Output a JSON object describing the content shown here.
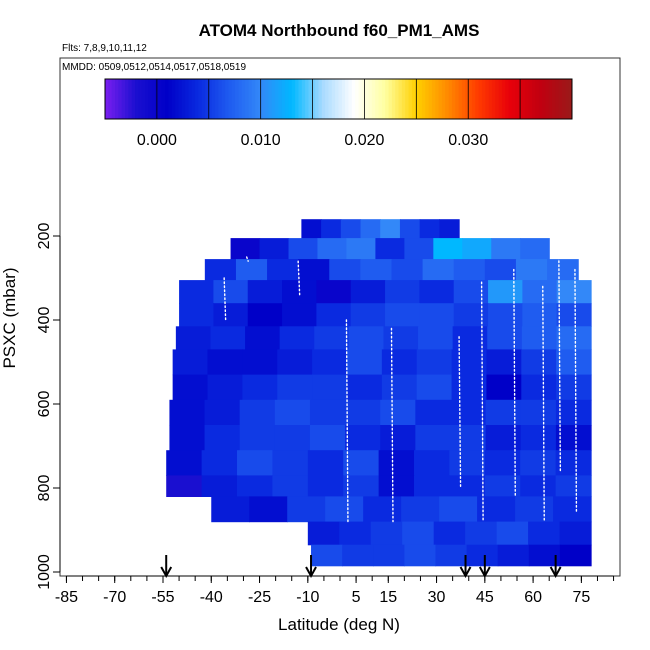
{
  "chart_data": {
    "type": "heatmap",
    "title": "ATOM4 Northbound f60_PM1_AMS",
    "flights_label": "Flts: 7,8,9,10,11,12",
    "dates_label": "MMDD: 0509,0512,0514,0517,0518,0519",
    "xlabel": "Latitude (deg N)",
    "ylabel": "PSXC (mbar)",
    "xlim": [
      -87,
      87
    ],
    "ylim": [
      1015,
      0
    ],
    "x_ticks": [
      -85,
      -70,
      -55,
      -40,
      -25,
      -10,
      5,
      15,
      30,
      45,
      60,
      75
    ],
    "x_tick_labels": [
      "-85",
      "-70",
      "-55",
      "-40",
      "-25",
      "-10",
      "5",
      "15",
      "30",
      "45",
      "60",
      "75"
    ],
    "y_ticks": [
      200,
      400,
      600,
      800,
      1000
    ],
    "y_tick_labels": [
      "200",
      "400",
      "600",
      "800",
      "1000"
    ],
    "colorbar": {
      "range": [
        -0.005,
        0.04
      ],
      "tick_values": [
        0.0,
        0.01,
        0.02,
        0.03
      ],
      "tick_labels": [
        "0.000",
        "0.010",
        "0.020",
        "0.030"
      ],
      "colors": [
        "#7a1ff0",
        "#1a0fd0",
        "#0000c8",
        "#0a2ae0",
        "#1f5cf0",
        "#3388f8",
        "#00b8ff",
        "#a8daff",
        "#ffffff",
        "#ffffa0",
        "#ffd000",
        "#ff8a00",
        "#ff3a00",
        "#e8000a",
        "#c00010",
        "#9a1a1a"
      ]
    },
    "flight_markers_lat": [
      -54,
      -9,
      39,
      45,
      67
    ],
    "bands": [
      {
        "p": [
          160,
          205
        ],
        "lat": [
          -12,
          37
        ],
        "vals": [
          0.002,
          0.004,
          0.006,
          0.008,
          0.01,
          0.006,
          0.004,
          0.003
        ]
      },
      {
        "p": [
          205,
          255
        ],
        "lat": [
          -34,
          65
        ],
        "vals": [
          0.0,
          0.003,
          0.006,
          0.008,
          0.009,
          0.004,
          0.006,
          0.013,
          0.012,
          0.009,
          0.008
        ]
      },
      {
        "p": [
          255,
          305
        ],
        "lat": [
          -42,
          74
        ],
        "vals": [
          0.004,
          0.007,
          0.004,
          0.002,
          0.006,
          0.007,
          0.006,
          0.008,
          0.007,
          0.006,
          0.009,
          0.008
        ]
      },
      {
        "p": [
          305,
          360
        ],
        "lat": [
          -50,
          78
        ],
        "vals": [
          0.004,
          0.006,
          0.003,
          0.002,
          0.0,
          0.003,
          0.005,
          0.004,
          0.006,
          0.011,
          0.008,
          0.01
        ]
      },
      {
        "p": [
          360,
          415
        ],
        "lat": [
          -50,
          78
        ],
        "vals": [
          0.004,
          0.003,
          0.001,
          0.002,
          0.004,
          0.005,
          0.006,
          0.006,
          0.005,
          0.006,
          0.007,
          0.006
        ]
      },
      {
        "p": [
          415,
          470
        ],
        "lat": [
          -51,
          78
        ],
        "vals": [
          0.003,
          0.004,
          0.002,
          0.004,
          0.005,
          0.006,
          0.005,
          0.006,
          0.004,
          0.006,
          0.007,
          0.008
        ]
      },
      {
        "p": [
          470,
          530
        ],
        "lat": [
          -52,
          78
        ],
        "vals": [
          0.003,
          0.002,
          0.002,
          0.003,
          0.004,
          0.006,
          0.004,
          0.005,
          0.004,
          0.003,
          0.005,
          0.007
        ]
      },
      {
        "p": [
          530,
          590
        ],
        "lat": [
          -52,
          78
        ],
        "vals": [
          0.002,
          0.003,
          0.004,
          0.005,
          0.005,
          0.004,
          0.005,
          0.006,
          0.004,
          0.001,
          0.004,
          0.005
        ]
      },
      {
        "p": [
          590,
          650
        ],
        "lat": [
          -53,
          78
        ],
        "vals": [
          0.002,
          0.003,
          0.005,
          0.006,
          0.005,
          0.005,
          0.006,
          0.004,
          0.004,
          0.005,
          0.005,
          0.004
        ]
      },
      {
        "p": [
          650,
          710
        ],
        "lat": [
          -53,
          78
        ],
        "vals": [
          0.002,
          0.004,
          0.005,
          0.005,
          0.006,
          0.004,
          0.003,
          0.005,
          0.005,
          0.003,
          0.004,
          0.002
        ]
      },
      {
        "p": [
          710,
          770
        ],
        "lat": [
          -54,
          78
        ],
        "vals": [
          0.002,
          0.004,
          0.006,
          0.005,
          0.004,
          0.006,
          0.002,
          0.004,
          0.005,
          0.004,
          0.005,
          0.004
        ]
      },
      {
        "p": [
          770,
          820
        ],
        "lat": [
          -54,
          78
        ],
        "vals": [
          -0.002,
          0.003,
          0.004,
          0.005,
          0.004,
          0.005,
          0.002,
          0.004,
          0.004,
          0.005,
          0.004,
          0.005
        ]
      },
      {
        "p": [
          820,
          880
        ],
        "lat": [
          -40,
          78
        ],
        "vals": [
          0.003,
          0.002,
          0.005,
          0.006,
          0.004,
          0.005,
          0.006,
          0.004,
          0.005,
          0.004
        ]
      },
      {
        "p": [
          880,
          935
        ],
        "lat": [
          -10,
          78
        ],
        "vals": [
          0.003,
          0.004,
          0.005,
          0.006,
          0.004,
          0.005,
          0.006,
          0.004,
          0.003
        ]
      },
      {
        "p": [
          935,
          985
        ],
        "lat": [
          -9,
          78
        ],
        "vals": [
          0.006,
          0.005,
          0.005,
          0.006,
          0.005,
          0.004,
          0.003,
          0.002,
          0.001
        ]
      }
    ],
    "white_tracks_lat": [
      -36,
      -29,
      -13,
      2,
      16,
      37,
      44,
      54,
      63,
      68,
      73
    ]
  }
}
